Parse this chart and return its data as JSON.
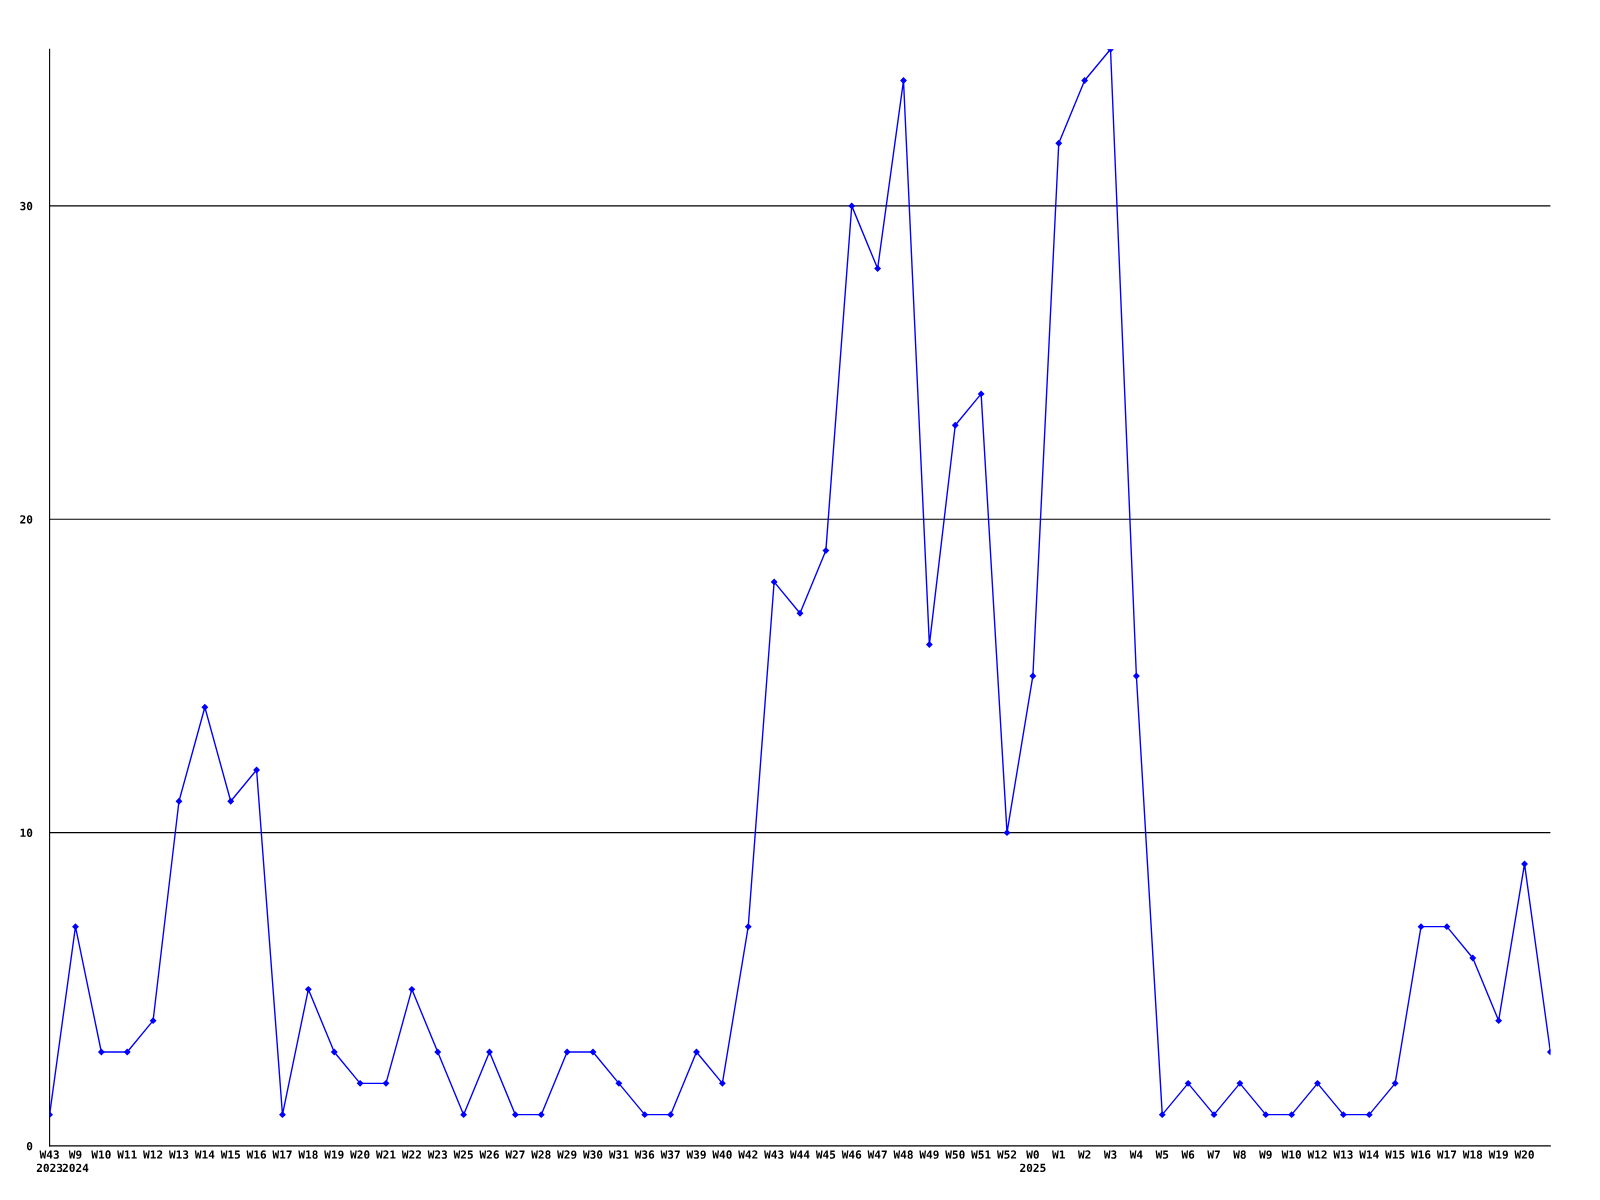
{
  "chart_data": {
    "type": "line",
    "categories": [
      "W43\n2023",
      "W9\n2024",
      "W10",
      "W11",
      "W12",
      "W13",
      "W14",
      "W15",
      "W16",
      "W17",
      "W18",
      "W19",
      "W20",
      "W21",
      "W22",
      "W23",
      "W25",
      "W26",
      "W27",
      "W28",
      "W29",
      "W30",
      "W31",
      "W36",
      "W37",
      "W39",
      "W40",
      "W42",
      "W43",
      "W44",
      "W45",
      "W46",
      "W47",
      "W48",
      "W49",
      "W50",
      "W51",
      "W52",
      "W0\n2025",
      "W1",
      "W2",
      "W3",
      "W4",
      "W5",
      "W6",
      "W7",
      "W8",
      "W9",
      "W10",
      "W12",
      "W13",
      "W14",
      "W15",
      "W16",
      "W17",
      "W18",
      "W19",
      "W20",
      null
    ],
    "series": [
      {
        "color": "#0000ff",
        "values": [
          1,
          7,
          3,
          3,
          4,
          11,
          14,
          11,
          12,
          1,
          5,
          3,
          2,
          2,
          5,
          3,
          1,
          3,
          1,
          1,
          3,
          3,
          2,
          1,
          1,
          3,
          2,
          7,
          18,
          17,
          19,
          30,
          28,
          34,
          16,
          23,
          24,
          10,
          15,
          32,
          34,
          35,
          15,
          1,
          2,
          1,
          2,
          1,
          1,
          2,
          1,
          1,
          2,
          7,
          7,
          6,
          4,
          9,
          3
        ]
      }
    ],
    "ylim": [
      0,
      35
    ],
    "yticks": [
      0,
      10,
      20,
      30
    ],
    "grid": "y",
    "marker": "diamond",
    "line_style": "solid",
    "legend": false
  }
}
